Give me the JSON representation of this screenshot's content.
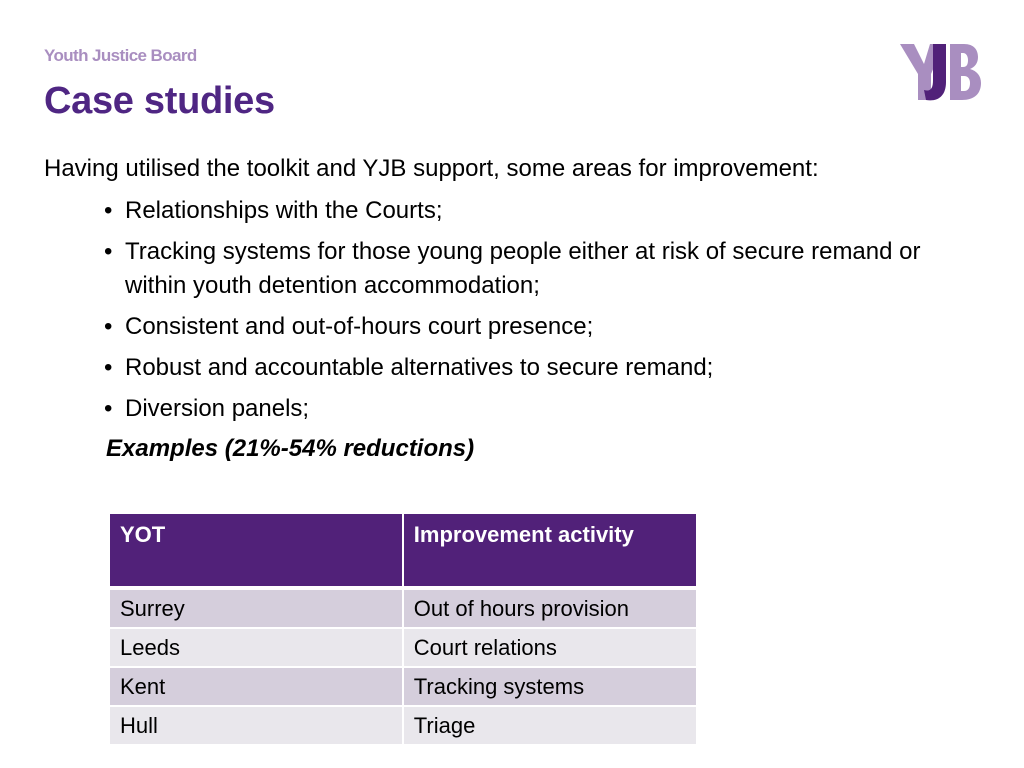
{
  "header": {
    "org_name": "Youth Justice Board",
    "logo_text": "YJB",
    "logo_colors": {
      "light": "#a98ec0",
      "dark": "#512179"
    }
  },
  "slide": {
    "title": "Case studies",
    "intro": "Having utilised the toolkit and YJB support, some areas for improvement:",
    "bullets": [
      "Relationships with the Courts;",
      "Tracking systems for those young people either at risk of secure remand or within youth detention accommodation;",
      "Consistent and out-of-hours court presence;",
      "Robust and accountable alternatives to secure remand;",
      "Diversion panels;"
    ],
    "bullet_symbol": "•",
    "examples": "Examples (21%-54% reductions)"
  },
  "table": {
    "headers": [
      "YOT",
      "Improvement activity"
    ],
    "rows": [
      [
        "Surrey",
        "Out of hours provision"
      ],
      [
        "Leeds",
        "Court relations"
      ],
      [
        "Kent",
        "Tracking systems"
      ],
      [
        "Hull",
        "Triage"
      ]
    ],
    "colors": {
      "header_bg": "#512179",
      "row_odd_bg": "#d5cedc",
      "row_even_bg": "#e9e7ec"
    }
  },
  "theme": {
    "title_color": "#4f2683",
    "org_name_color": "#a98ec0"
  }
}
